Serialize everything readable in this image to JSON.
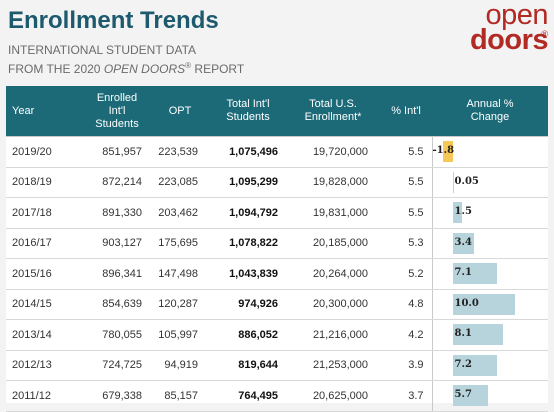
{
  "header": {
    "title": "Enrollment Trends",
    "subtitle_line1": "INTERNATIONAL STUDENT DATA",
    "subtitle_line2_pre": "FROM THE 2020 ",
    "subtitle_line2_em": "OPEN DOORS",
    "subtitle_line2_reg": "®",
    "subtitle_line2_post": " REPORT"
  },
  "logo": {
    "line1": "open",
    "line2": "doors",
    "reg": "®"
  },
  "table": {
    "columns": {
      "year": "Year",
      "enrolled_1": "Enrolled",
      "enrolled_2": "Int'l",
      "enrolled_3": "Students",
      "opt": "OPT",
      "total_intl_1": "Total Int'l",
      "total_intl_2": "Students",
      "total_us_1": "Total U.S.",
      "total_us_2": "Enrollment*",
      "pct_intl": "% Int'l",
      "annual_change_1": "Annual %",
      "annual_change_2": "Change"
    },
    "rows": [
      {
        "year": "2019/20",
        "enrolled": "851,957",
        "opt": "223,539",
        "total_intl": "1,075,496",
        "total_us": "19,720,000",
        "pct_intl": "5.5",
        "change": -1.8,
        "change_label": "-1.8"
      },
      {
        "year": "2018/19",
        "enrolled": "872,214",
        "opt": "223,085",
        "total_intl": "1,095,299",
        "total_us": "19,828,000",
        "pct_intl": "5.5",
        "change": 0.05,
        "change_label": "0.05"
      },
      {
        "year": "2017/18",
        "enrolled": "891,330",
        "opt": "203,462",
        "total_intl": "1,094,792",
        "total_us": "19,831,000",
        "pct_intl": "5.5",
        "change": 1.5,
        "change_label": "1.5"
      },
      {
        "year": "2016/17",
        "enrolled": "903,127",
        "opt": "175,695",
        "total_intl": "1,078,822",
        "total_us": "20,185,000",
        "pct_intl": "5.3",
        "change": 3.4,
        "change_label": "3.4"
      },
      {
        "year": "2015/16",
        "enrolled": "896,341",
        "opt": "147,498",
        "total_intl": "1,043,839",
        "total_us": "20,264,000",
        "pct_intl": "5.2",
        "change": 7.1,
        "change_label": "7.1"
      },
      {
        "year": "2014/15",
        "enrolled": "854,639",
        "opt": "120,287",
        "total_intl": "974,926",
        "total_us": "20,300,000",
        "pct_intl": "4.8",
        "change": 10.0,
        "change_label": "10.0"
      },
      {
        "year": "2013/14",
        "enrolled": "780,055",
        "opt": "105,997",
        "total_intl": "886,052",
        "total_us": "21,216,000",
        "pct_intl": "4.2",
        "change": 8.1,
        "change_label": "8.1"
      },
      {
        "year": "2012/13",
        "enrolled": "724,725",
        "opt": "94,919",
        "total_intl": "819,644",
        "total_us": "21,253,000",
        "pct_intl": "3.9",
        "change": 7.2,
        "change_label": "7.2"
      },
      {
        "year": "2011/12",
        "enrolled": "679,338",
        "opt": "85,157",
        "total_intl": "764,495",
        "total_us": "20,625,000",
        "pct_intl": "3.7",
        "change": 5.7,
        "change_label": "5.7"
      }
    ]
  },
  "colors": {
    "header_bg": "#1c6a78",
    "title": "#1d5a6e",
    "logo": "#b22a24",
    "bar_positive": "#b7d4dc",
    "bar_negative": "#f6c859"
  }
}
